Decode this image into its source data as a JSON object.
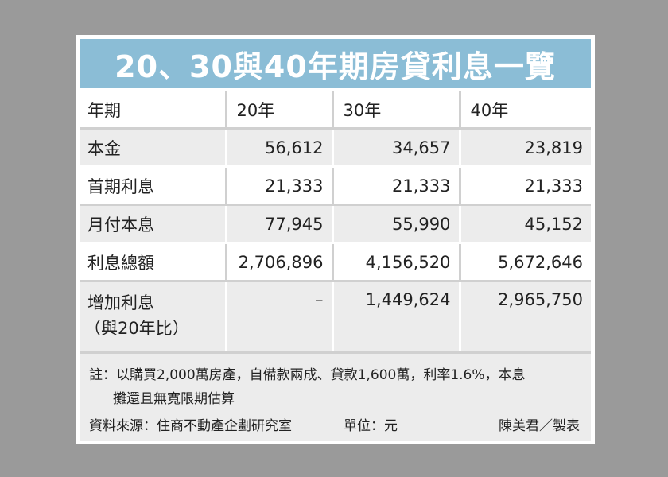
{
  "title": "20、30與40年期房貸利息一覽",
  "chart_data": {
    "type": "table",
    "title": "20、30與40年期房貸利息一覽",
    "columns": [
      "年期",
      "20年",
      "30年",
      "40年"
    ],
    "rows": [
      {
        "label": "本金",
        "label2": "",
        "values": [
          "56,612",
          "34,657",
          "23,819"
        ]
      },
      {
        "label": "首期利息",
        "label2": "",
        "values": [
          "21,333",
          "21,333",
          "21,333"
        ]
      },
      {
        "label": "月付本息",
        "label2": "",
        "values": [
          "77,945",
          "55,990",
          "45,152"
        ]
      },
      {
        "label": "利息總額",
        "label2": "",
        "values": [
          "2,706,896",
          "4,156,520",
          "5,672,646"
        ]
      },
      {
        "label": "增加利息",
        "label2": "（與20年比）",
        "values": [
          "–",
          "1,449,624",
          "2,965,750"
        ]
      }
    ]
  },
  "notes": {
    "line1": "註：以購買2,000萬房產，自備款兩成、貸款1,600萬，利率1.6%，本息",
    "line2": "攤還且無寬限期估算",
    "source": "資料來源：住商不動產企劃研究室",
    "unit": "單位：元",
    "credit": "陳美君／製表"
  },
  "colors": {
    "title_background": "#8bbdd6",
    "shaded_row": "#ececec",
    "page_background": "#9a9a9a"
  }
}
